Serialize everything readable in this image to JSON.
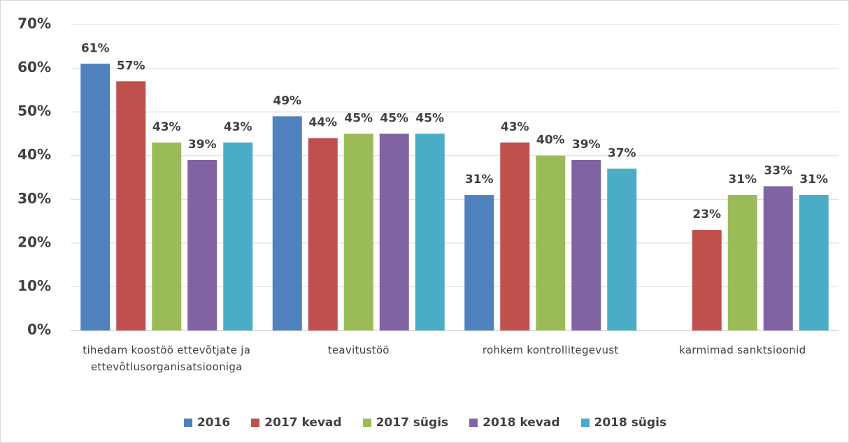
{
  "chart_data": {
    "type": "bar",
    "categories": [
      "tihedam koostöö ettevõtjate ja ettevõtlusorganisatsiooniga",
      "teavitustöö",
      "rohkem kontrollitegevust",
      "karmimad sanktsioonid"
    ],
    "series": [
      {
        "name": "2016",
        "color": "#4f81bd",
        "values": [
          61,
          49,
          31,
          null
        ],
        "value_labels": [
          "61%",
          "49%",
          "31%",
          null
        ]
      },
      {
        "name": "2017 kevad",
        "color": "#c0504d",
        "values": [
          57,
          44,
          43,
          23
        ],
        "value_labels": [
          "57%",
          "44%",
          "43%",
          "23%"
        ]
      },
      {
        "name": "2017 sügis",
        "color": "#9bbb59",
        "values": [
          43,
          45,
          40,
          31
        ],
        "value_labels": [
          "43%",
          "45%",
          "40%",
          "31%"
        ]
      },
      {
        "name": "2018 kevad",
        "color": "#8064a2",
        "values": [
          39,
          45,
          39,
          33
        ],
        "value_labels": [
          "39%",
          "45%",
          "39%",
          "33%"
        ]
      },
      {
        "name": "2018 sügis",
        "color": "#4bacc6",
        "values": [
          43,
          45,
          37,
          31
        ],
        "value_labels": [
          "43%",
          "45%",
          "37%",
          "31%"
        ]
      }
    ],
    "ylim": [
      0,
      70
    ],
    "yticks": [
      {
        "value": 0,
        "label": "0%"
      },
      {
        "value": 10,
        "label": "10%"
      },
      {
        "value": 20,
        "label": "20%"
      },
      {
        "value": 30,
        "label": "30%"
      },
      {
        "value": 40,
        "label": "40%"
      },
      {
        "value": 50,
        "label": "50%"
      },
      {
        "value": 60,
        "label": "60%"
      },
      {
        "value": 70,
        "label": "70%"
      }
    ],
    "grid": true,
    "legend": "bottom"
  }
}
